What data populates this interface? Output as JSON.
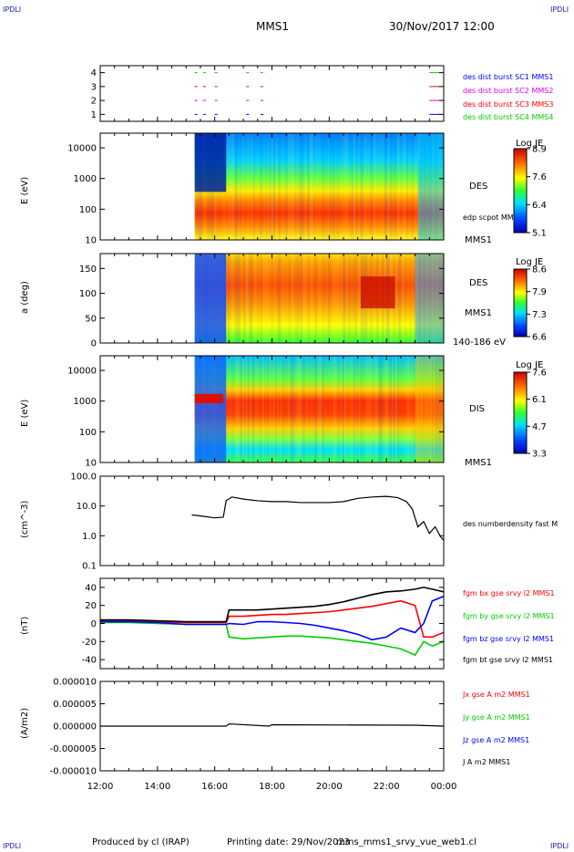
{
  "corner_label": "IPDLI",
  "header": {
    "spacecraft": "MMS1",
    "datetime": "30/Nov/2017 12:00"
  },
  "footer": {
    "produced": "Produced by cl (IRAP)",
    "printing": "Printing date: 29/Nov/2023",
    "file": "mms_mms1_srvy_vue_web1.cl"
  },
  "colors": {
    "red": "#ff0000",
    "green": "#00cc00",
    "blue": "#0000ff",
    "magenta": "#e000e0",
    "black": "#000000"
  },
  "time_axis": {
    "ticks": [
      "12:00",
      "14:00",
      "16:00",
      "18:00",
      "20:00",
      "22:00",
      "00:00"
    ]
  },
  "chart_data": [
    {
      "type": "scatter",
      "name": "burst",
      "y_ticks": [
        "1",
        "2",
        "3",
        "4"
      ],
      "ylim": [
        0.5,
        4.5
      ],
      "legend": [
        "des dist burst SC1 MMS1",
        "des dist burst SC2 MMS2",
        "des dist burst SC3 MMS3",
        "des dist burst SC4 MMS4"
      ],
      "legend_colors": [
        "#0000ff",
        "#e000e0",
        "#ff0000",
        "#00cc00"
      ],
      "series": [
        {
          "y": 1,
          "color": "#0000ff",
          "x": [
            15.3,
            15.6,
            16.0,
            17.1,
            17.6,
            23.5
          ]
        },
        {
          "y": 2,
          "color": "#e000e0",
          "x": [
            15.3,
            15.6,
            16.0,
            17.1,
            17.6,
            23.5
          ]
        },
        {
          "y": 3,
          "color": "#ff0000",
          "x": [
            15.3,
            15.6,
            16.0,
            17.1,
            17.6,
            23.5
          ]
        },
        {
          "y": 4,
          "color": "#00cc00",
          "x": [
            15.3,
            15.6,
            16.0,
            17.1,
            17.6,
            23.5
          ]
        }
      ]
    },
    {
      "type": "heatmap",
      "name": "des-energy",
      "ylabel": "E (eV)",
      "y_ticks": [
        "10",
        "100",
        "1000",
        "10000"
      ],
      "scale": "log",
      "side": "DES",
      "annot": "edp scpot MMS1",
      "bottom": "MMS1",
      "colorbar": {
        "title": "Log JE",
        "ticks": [
          "8.9",
          "7.6",
          "6.4",
          "5.1"
        ]
      }
    },
    {
      "type": "heatmap",
      "name": "des-pitch",
      "ylabel": "a (deg)",
      "y_ticks": [
        "0",
        "50",
        "100",
        "150"
      ],
      "side": "DES",
      "side2": "MMS1",
      "bottom": "140-186 eV",
      "colorbar": {
        "title": "Log JE",
        "ticks": [
          "8.6",
          "7.9",
          "7.3",
          "6.6"
        ]
      }
    },
    {
      "type": "heatmap",
      "name": "dis-energy",
      "ylabel": "E (eV)",
      "y_ticks": [
        "10",
        "100",
        "1000",
        "10000"
      ],
      "scale": "log",
      "side": "DIS",
      "bottom": "MMS1",
      "colorbar": {
        "title": "Log JE",
        "ticks": [
          "7.6",
          "6.1",
          "4.7",
          "3.3"
        ]
      }
    },
    {
      "type": "line",
      "name": "density",
      "ylabel": "(cm^-3)",
      "y_ticks": [
        "0.1",
        "1.0",
        "10.0",
        "100.0"
      ],
      "scale": "log",
      "ylim": [
        0.1,
        100
      ],
      "legend": [
        "des numberdensity fast M"
      ],
      "series": [
        {
          "name": "des numberdensity fast M",
          "color": "#000000",
          "x": [
            15.2,
            15.6,
            16.0,
            16.3,
            16.4,
            16.6,
            17.0,
            17.5,
            18.0,
            18.5,
            19.0,
            19.5,
            20.0,
            20.5,
            21.0,
            21.5,
            22.0,
            22.4,
            22.7,
            22.9,
            23.1,
            23.3,
            23.5,
            23.7,
            23.9,
            24.0
          ],
          "y": [
            5,
            4.5,
            4,
            4.2,
            15,
            20,
            17,
            15,
            14,
            14,
            13,
            13,
            13,
            14,
            18,
            20,
            21,
            19,
            14,
            8,
            2,
            3,
            1.2,
            2,
            0.9,
            0.7
          ]
        }
      ]
    },
    {
      "type": "line",
      "name": "magnetic-field",
      "ylabel": "(nT)",
      "y_ticks": [
        "-40",
        "-20",
        "0",
        "20",
        "40"
      ],
      "ylim": [
        -50,
        50
      ],
      "legend": [
        "fgm bx gse srvy l2 MMS1",
        "fgm by gse srvy l2 MMS1",
        "fgm bz gse srvy l2 MMS1",
        "fgm bt gse srvy l2 MMS1"
      ],
      "legend_colors": [
        "#ff0000",
        "#00cc00",
        "#0000ff",
        "#000000"
      ],
      "x": [
        12,
        13,
        14,
        15,
        16,
        16.4,
        16.5,
        17,
        17.5,
        18,
        18.5,
        19,
        19.5,
        20,
        20.5,
        21,
        21.5,
        22,
        22.5,
        23,
        23.3,
        23.6,
        24
      ],
      "series": [
        {
          "name": "fgm bx gse srvy l2 MMS1",
          "color": "#ff0000",
          "y": [
            3,
            3,
            2,
            1,
            1,
            1,
            8,
            8,
            9,
            10,
            10,
            11,
            12,
            13,
            15,
            17,
            19,
            22,
            25,
            20,
            -15,
            -15,
            -10
          ]
        },
        {
          "name": "fgm by gse srvy l2 MMS1",
          "color": "#00cc00",
          "y": [
            1,
            1,
            0,
            -1,
            -1,
            -1,
            -15,
            -17,
            -16,
            -15,
            -14,
            -14,
            -15,
            -16,
            -18,
            -20,
            -22,
            -25,
            -28,
            -35,
            -20,
            -25,
            -20
          ]
        },
        {
          "name": "fgm bz gse srvy l2 MMS1",
          "color": "#0000ff",
          "y": [
            2,
            2,
            1,
            -1,
            -1,
            -1,
            0,
            -1,
            2,
            2,
            1,
            0,
            -2,
            -5,
            -8,
            -12,
            -18,
            -15,
            -5,
            -10,
            0,
            25,
            30
          ]
        },
        {
          "name": "fgm bt gse srvy l2 MMS1",
          "color": "#000000",
          "y": [
            4,
            4,
            3,
            2,
            2,
            2,
            15,
            15,
            15,
            16,
            17,
            18,
            19,
            21,
            24,
            28,
            32,
            35,
            36,
            38,
            40,
            38,
            35
          ]
        }
      ]
    },
    {
      "type": "line",
      "name": "current",
      "ylabel": "(A/m2)",
      "y_ticks": [
        "-0.000010",
        "-0.000005",
        "0.000000",
        "0.000005",
        "0.000010"
      ],
      "ylim": [
        -1e-05,
        1e-05
      ],
      "legend": [
        "Jx gse A m2 MMS1",
        "Jy gse A m2 MMS1",
        "Jz gse A m2 MMS1",
        "J A m2 MMS1"
      ],
      "legend_colors": [
        "#ff0000",
        "#00cc00",
        "#0000ff",
        "#000000"
      ],
      "series": [
        {
          "name": "J A m2 MMS1",
          "color": "#000000",
          "x": [
            12,
            16.4,
            16.5,
            17.9,
            18.0,
            23.0,
            24
          ],
          "y": [
            0,
            0,
            5e-07,
            0,
            3e-07,
            2e-07,
            0
          ]
        }
      ]
    }
  ]
}
